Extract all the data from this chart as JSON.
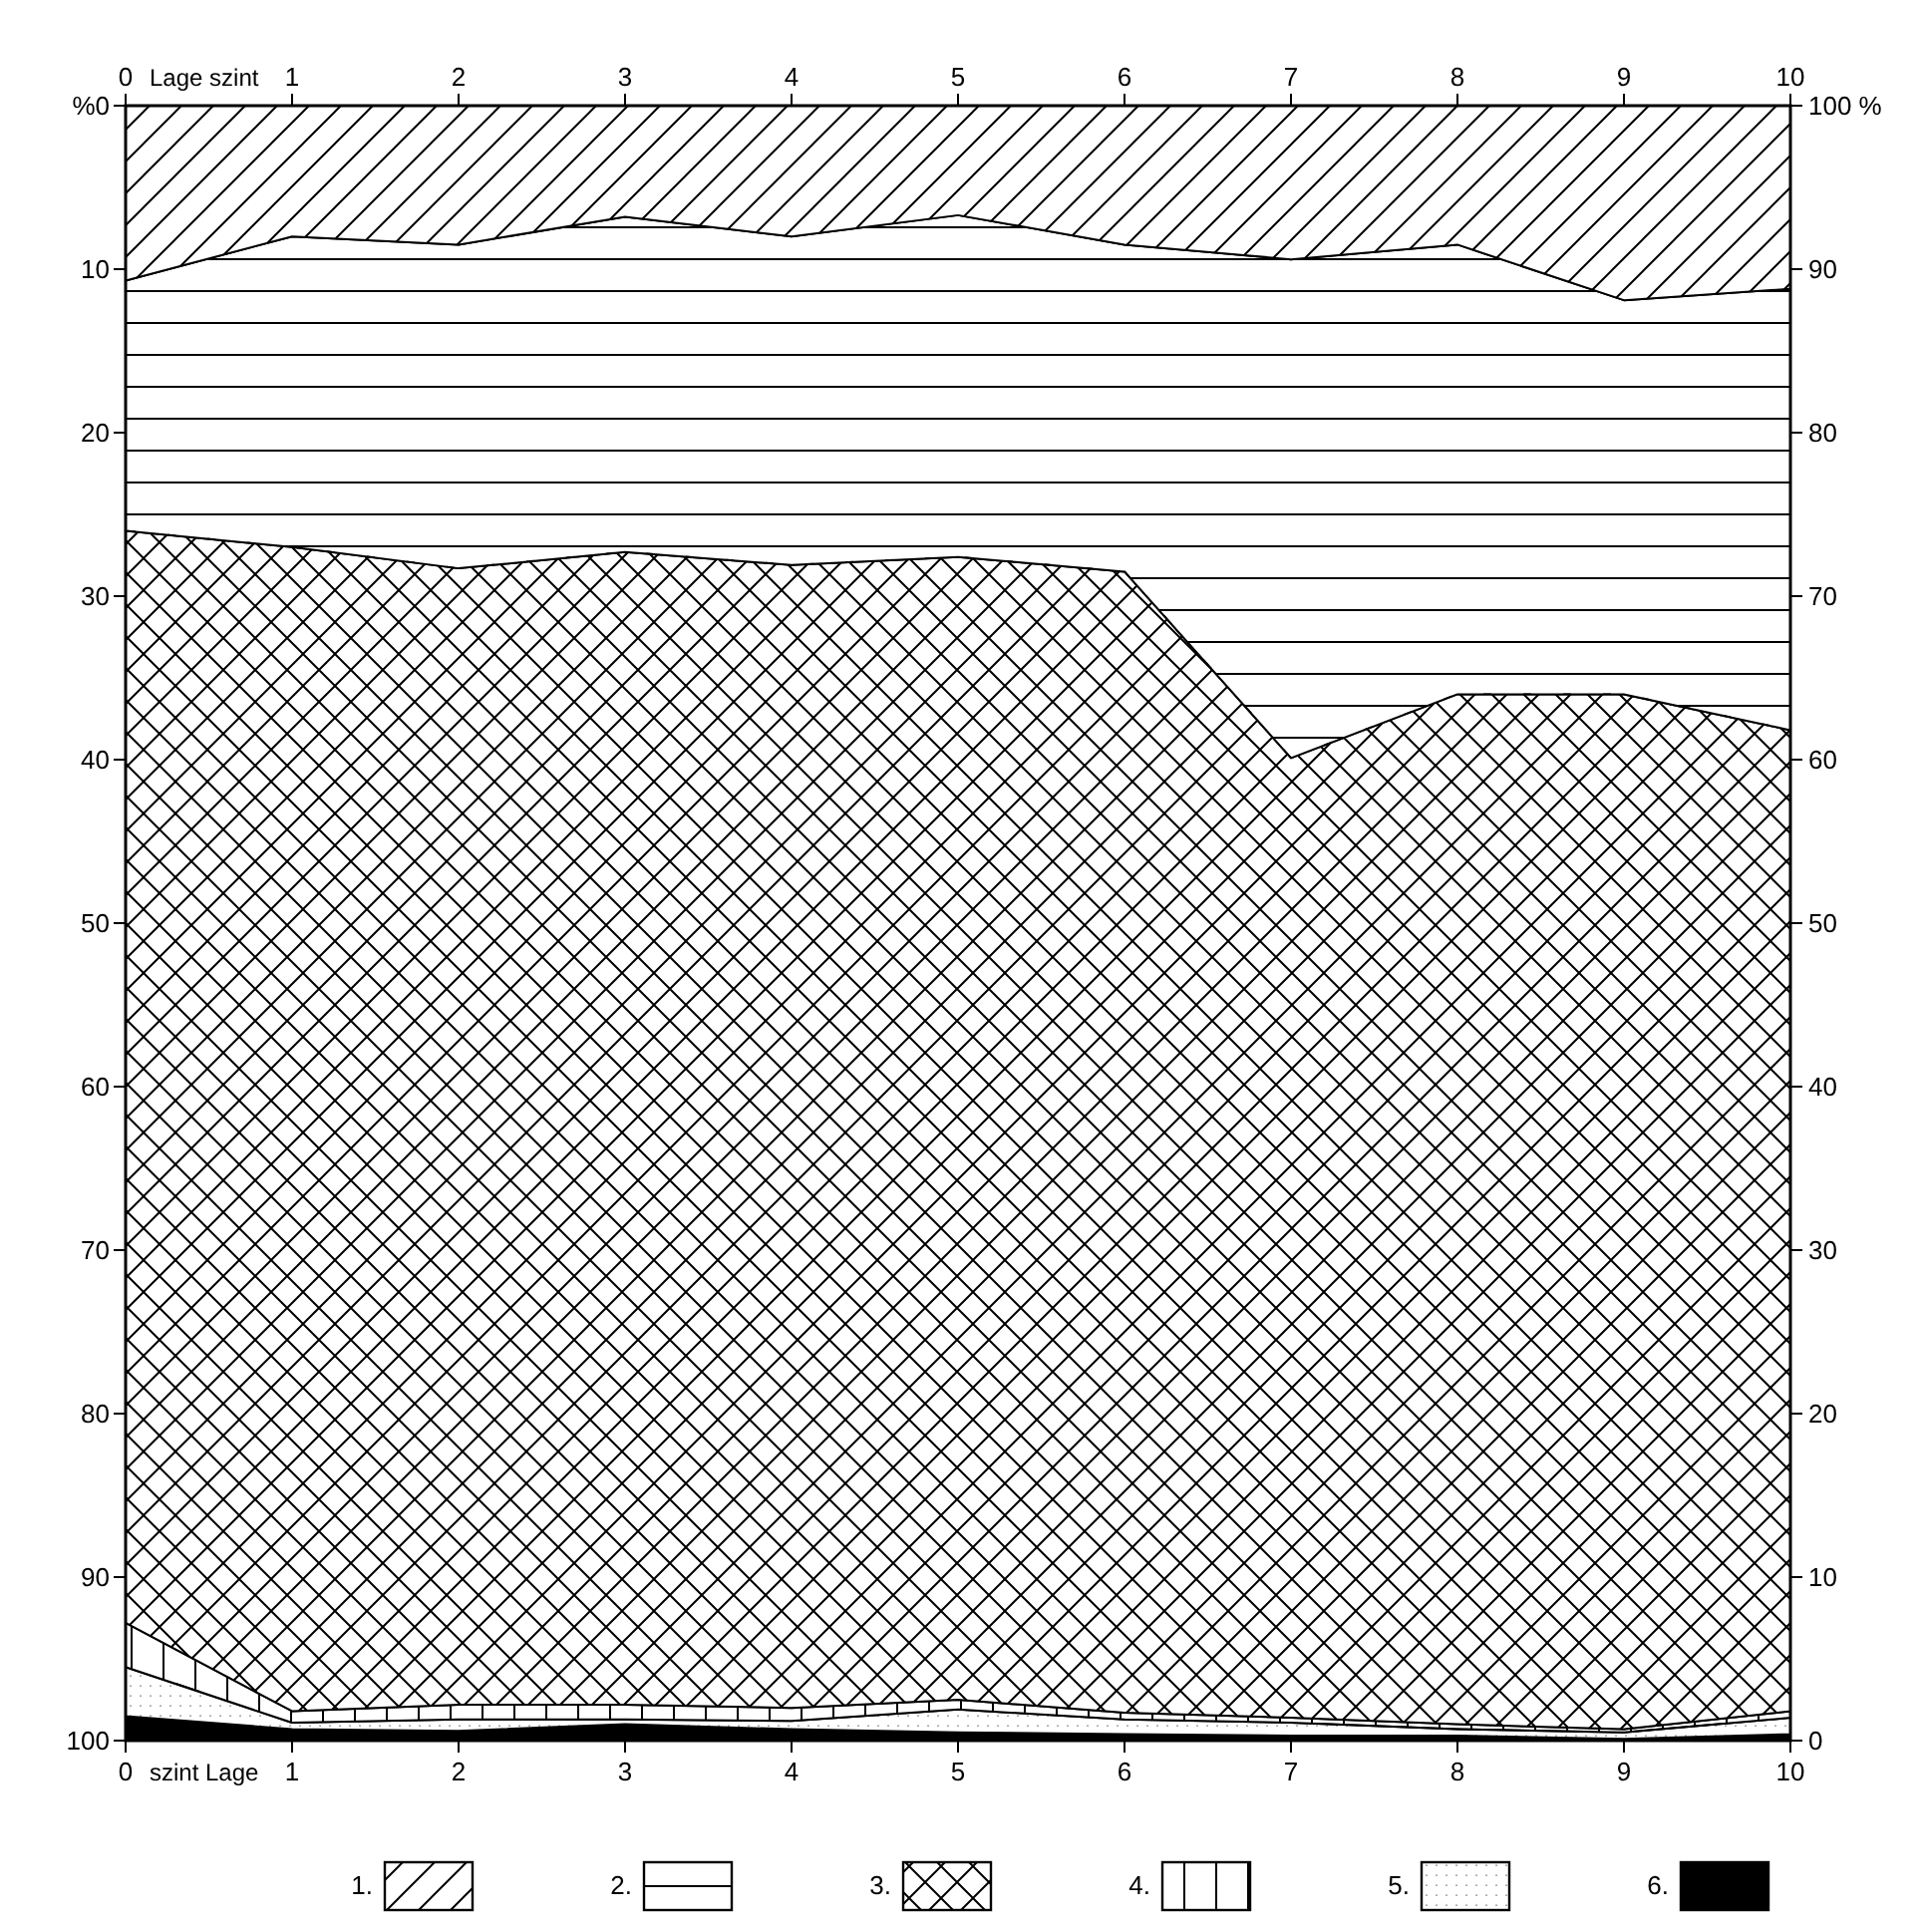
{
  "chart_data": {
    "type": "area",
    "stacked": true,
    "x": [
      0,
      1,
      2,
      3,
      4,
      5,
      6,
      7,
      8,
      9,
      10
    ],
    "xlim": [
      0,
      10
    ],
    "xticks": [
      0,
      1,
      2,
      3,
      4,
      5,
      6,
      7,
      8,
      9,
      10
    ],
    "x2lim": [
      0,
      10
    ],
    "x2ticks": [
      0,
      1,
      2,
      3,
      4,
      5,
      6,
      7,
      8,
      9,
      10
    ],
    "xlabel": "szint Lage",
    "x2label": "Lage szint",
    "ylim": [
      100,
      0
    ],
    "yticks": [
      {
        "value": 0,
        "label": "%0"
      },
      10,
      20,
      30,
      40,
      50,
      60,
      70,
      80,
      90,
      100
    ],
    "y2lim": [
      0,
      100
    ],
    "y2ticks": [
      0,
      10,
      20,
      30,
      40,
      50,
      60,
      70,
      80,
      90,
      {
        "value": 100,
        "label": "100 %"
      }
    ],
    "legend": "bottom",
    "grid": false,
    "series": [
      {
        "name": "1.",
        "color": "#000000",
        "values": [
          10.7,
          8.0,
          8.5,
          6.8,
          8.0,
          6.7,
          8.5,
          9.4,
          8.5,
          11.9,
          11.2
        ]
      },
      {
        "name": "2.",
        "color": "#000000",
        "values": [
          15.3,
          19.0,
          19.8,
          20.5,
          20.1,
          20.9,
          20.0,
          30.5,
          27.5,
          24.1,
          27.0
        ]
      },
      {
        "name": "3.",
        "color": "#000000",
        "values": [
          66.8,
          71.2,
          69.5,
          70.5,
          69.9,
          69.9,
          69.8,
          58.7,
          63.0,
          63.3,
          60.0
        ]
      },
      {
        "name": "4.",
        "color": "#000000",
        "values": [
          2.7,
          0.7,
          0.9,
          0.9,
          0.8,
          0.6,
          0.4,
          0.3,
          0.3,
          0.2,
          0.4
        ]
      },
      {
        "name": "5.",
        "color": "#000000",
        "values": [
          3.0,
          0.4,
          0.7,
          0.3,
          0.5,
          1.4,
          0.9,
          0.8,
          0.4,
          0.4,
          1.0
        ]
      },
      {
        "name": "6.",
        "color": "#000000",
        "values": [
          1.5,
          0.7,
          0.6,
          1.0,
          0.7,
          0.5,
          0.4,
          0.3,
          0.3,
          0.1,
          0.4
        ]
      }
    ]
  }
}
